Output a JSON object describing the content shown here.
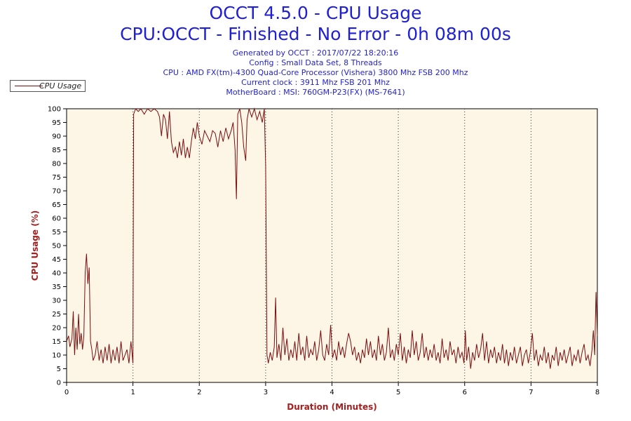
{
  "header": {
    "title": "OCCT 4.5.0 - CPU Usage",
    "subtitle": "CPU:OCCT - Finished - No Error - 0h 08m 00s",
    "info_lines": [
      "Generated by OCCT : 2017/07/22 18:20:16",
      "Config : Small Data Set, 8 Threads",
      "CPU : AMD FX(tm)-4300 Quad-Core Processor (Vishera) 3800 Mhz FSB 200 Mhz",
      "Current clock : 3911 Mhz FSB 201 Mhz",
      "MotherBoard : MSI: 760GM-P23(FX) (MS-7641)"
    ]
  },
  "colors": {
    "title": "#1f1fd6",
    "axis_label": "#a32020",
    "series": "#7a0d0d",
    "plot_bg": "#fdf5e6"
  },
  "chart_data": {
    "type": "line",
    "xlabel": "Duration (Minutes)",
    "ylabel": "CPU Usage (%)",
    "xlim": [
      0,
      8
    ],
    "ylim": [
      0,
      100
    ],
    "x_ticks": [
      0,
      1,
      2,
      3,
      4,
      5,
      6,
      7,
      8
    ],
    "y_ticks": [
      0,
      5,
      10,
      15,
      20,
      25,
      30,
      35,
      40,
      45,
      50,
      55,
      60,
      65,
      70,
      75,
      80,
      85,
      90,
      95,
      100
    ],
    "grid": "vertical dotted at each minute",
    "legend": "top-left",
    "series": [
      {
        "name": "CPU Usage",
        "points": [
          [
            0.0,
            15
          ],
          [
            0.03,
            17
          ],
          [
            0.05,
            13
          ],
          [
            0.08,
            16
          ],
          [
            0.1,
            26
          ],
          [
            0.12,
            10
          ],
          [
            0.14,
            20
          ],
          [
            0.16,
            12
          ],
          [
            0.18,
            25
          ],
          [
            0.2,
            14
          ],
          [
            0.22,
            18
          ],
          [
            0.24,
            12
          ],
          [
            0.26,
            17
          ],
          [
            0.28,
            40
          ],
          [
            0.3,
            47
          ],
          [
            0.32,
            36
          ],
          [
            0.34,
            42
          ],
          [
            0.36,
            15
          ],
          [
            0.38,
            12
          ],
          [
            0.4,
            8
          ],
          [
            0.43,
            10
          ],
          [
            0.46,
            15
          ],
          [
            0.49,
            8
          ],
          [
            0.52,
            12
          ],
          [
            0.55,
            7
          ],
          [
            0.58,
            13
          ],
          [
            0.61,
            8
          ],
          [
            0.64,
            14
          ],
          [
            0.67,
            7
          ],
          [
            0.7,
            12
          ],
          [
            0.73,
            8
          ],
          [
            0.76,
            13
          ],
          [
            0.79,
            7
          ],
          [
            0.82,
            15
          ],
          [
            0.85,
            8
          ],
          [
            0.88,
            10
          ],
          [
            0.91,
            12
          ],
          [
            0.94,
            7
          ],
          [
            0.97,
            15
          ],
          [
            1.0,
            7
          ],
          [
            1.01,
            98
          ],
          [
            1.04,
            100
          ],
          [
            1.08,
            99
          ],
          [
            1.12,
            100
          ],
          [
            1.17,
            98
          ],
          [
            1.22,
            100
          ],
          [
            1.27,
            99
          ],
          [
            1.32,
            100
          ],
          [
            1.37,
            99
          ],
          [
            1.4,
            97
          ],
          [
            1.43,
            90
          ],
          [
            1.46,
            98
          ],
          [
            1.49,
            96
          ],
          [
            1.52,
            89
          ],
          [
            1.55,
            99
          ],
          [
            1.58,
            88
          ],
          [
            1.61,
            84
          ],
          [
            1.64,
            86
          ],
          [
            1.67,
            82
          ],
          [
            1.7,
            88
          ],
          [
            1.73,
            83
          ],
          [
            1.76,
            89
          ],
          [
            1.79,
            82
          ],
          [
            1.82,
            86
          ],
          [
            1.85,
            82
          ],
          [
            1.88,
            88
          ],
          [
            1.91,
            93
          ],
          [
            1.94,
            89
          ],
          [
            1.97,
            95
          ],
          [
            2.0,
            90
          ],
          [
            2.04,
            87
          ],
          [
            2.08,
            92
          ],
          [
            2.12,
            90
          ],
          [
            2.16,
            88
          ],
          [
            2.2,
            92
          ],
          [
            2.24,
            91
          ],
          [
            2.28,
            86
          ],
          [
            2.32,
            92
          ],
          [
            2.36,
            88
          ],
          [
            2.4,
            93
          ],
          [
            2.44,
            89
          ],
          [
            2.48,
            92
          ],
          [
            2.51,
            95
          ],
          [
            2.54,
            85
          ],
          [
            2.56,
            67
          ],
          [
            2.58,
            98
          ],
          [
            2.61,
            100
          ],
          [
            2.64,
            95
          ],
          [
            2.67,
            86
          ],
          [
            2.7,
            81
          ],
          [
            2.72,
            96
          ],
          [
            2.75,
            100
          ],
          [
            2.79,
            97
          ],
          [
            2.83,
            100
          ],
          [
            2.87,
            96
          ],
          [
            2.91,
            99
          ],
          [
            2.95,
            95
          ],
          [
            2.98,
            100
          ],
          [
            3.0,
            79
          ],
          [
            3.02,
            10
          ],
          [
            3.04,
            7
          ],
          [
            3.07,
            11
          ],
          [
            3.1,
            8
          ],
          [
            3.13,
            13
          ],
          [
            3.15,
            31
          ],
          [
            3.17,
            9
          ],
          [
            3.2,
            14
          ],
          [
            3.23,
            8
          ],
          [
            3.26,
            20
          ],
          [
            3.29,
            10
          ],
          [
            3.32,
            16
          ],
          [
            3.35,
            8
          ],
          [
            3.38,
            12
          ],
          [
            3.41,
            9
          ],
          [
            3.44,
            15
          ],
          [
            3.47,
            8
          ],
          [
            3.5,
            18
          ],
          [
            3.53,
            10
          ],
          [
            3.56,
            13
          ],
          [
            3.59,
            8
          ],
          [
            3.62,
            17
          ],
          [
            3.65,
            9
          ],
          [
            3.68,
            12
          ],
          [
            3.71,
            10
          ],
          [
            3.74,
            15
          ],
          [
            3.77,
            8
          ],
          [
            3.8,
            12
          ],
          [
            3.83,
            19
          ],
          [
            3.86,
            10
          ],
          [
            3.89,
            8
          ],
          [
            3.92,
            14
          ],
          [
            3.95,
            10
          ],
          [
            3.98,
            21
          ],
          [
            4.01,
            9
          ],
          [
            4.04,
            12
          ],
          [
            4.07,
            8
          ],
          [
            4.1,
            15
          ],
          [
            4.13,
            10
          ],
          [
            4.16,
            13
          ],
          [
            4.19,
            9
          ],
          [
            4.22,
            14
          ],
          [
            4.25,
            18
          ],
          [
            4.28,
            15
          ],
          [
            4.31,
            10
          ],
          [
            4.34,
            13
          ],
          [
            4.37,
            8
          ],
          [
            4.4,
            11
          ],
          [
            4.43,
            7
          ],
          [
            4.46,
            12
          ],
          [
            4.49,
            9
          ],
          [
            4.52,
            16
          ],
          [
            4.55,
            10
          ],
          [
            4.58,
            15
          ],
          [
            4.61,
            9
          ],
          [
            4.64,
            12
          ],
          [
            4.67,
            8
          ],
          [
            4.7,
            17
          ],
          [
            4.73,
            10
          ],
          [
            4.76,
            14
          ],
          [
            4.79,
            8
          ],
          [
            4.82,
            11
          ],
          [
            4.85,
            20
          ],
          [
            4.88,
            9
          ],
          [
            4.91,
            12
          ],
          [
            4.94,
            8
          ],
          [
            4.97,
            14
          ],
          [
            5.0,
            10
          ],
          [
            5.03,
            18
          ],
          [
            5.06,
            8
          ],
          [
            5.09,
            13
          ],
          [
            5.12,
            7
          ],
          [
            5.15,
            12
          ],
          [
            5.18,
            9
          ],
          [
            5.21,
            19
          ],
          [
            5.24,
            10
          ],
          [
            5.27,
            15
          ],
          [
            5.3,
            8
          ],
          [
            5.33,
            11
          ],
          [
            5.36,
            18
          ],
          [
            5.39,
            9
          ],
          [
            5.42,
            13
          ],
          [
            5.45,
            8
          ],
          [
            5.48,
            12
          ],
          [
            5.51,
            9
          ],
          [
            5.54,
            14
          ],
          [
            5.57,
            8
          ],
          [
            5.6,
            11
          ],
          [
            5.63,
            7
          ],
          [
            5.66,
            16
          ],
          [
            5.69,
            9
          ],
          [
            5.72,
            12
          ],
          [
            5.75,
            8
          ],
          [
            5.78,
            15
          ],
          [
            5.81,
            10
          ],
          [
            5.84,
            12
          ],
          [
            5.87,
            7
          ],
          [
            5.9,
            13
          ],
          [
            5.93,
            9
          ],
          [
            5.96,
            11
          ],
          [
            5.99,
            7
          ],
          [
            6.01,
            19
          ],
          [
            6.03,
            8
          ],
          [
            6.06,
            13
          ],
          [
            6.09,
            5
          ],
          [
            6.12,
            11
          ],
          [
            6.15,
            8
          ],
          [
            6.18,
            14
          ],
          [
            6.21,
            9
          ],
          [
            6.24,
            12
          ],
          [
            6.27,
            18
          ],
          [
            6.3,
            8
          ],
          [
            6.33,
            15
          ],
          [
            6.36,
            7
          ],
          [
            6.39,
            12
          ],
          [
            6.42,
            9
          ],
          [
            6.45,
            13
          ],
          [
            6.48,
            7
          ],
          [
            6.51,
            11
          ],
          [
            6.54,
            8
          ],
          [
            6.57,
            14
          ],
          [
            6.6,
            7
          ],
          [
            6.63,
            12
          ],
          [
            6.66,
            6
          ],
          [
            6.69,
            11
          ],
          [
            6.72,
            8
          ],
          [
            6.75,
            13
          ],
          [
            6.78,
            7
          ],
          [
            6.81,
            10
          ],
          [
            6.84,
            13
          ],
          [
            6.87,
            6
          ],
          [
            6.9,
            10
          ],
          [
            6.93,
            12
          ],
          [
            6.96,
            7
          ],
          [
            6.99,
            11
          ],
          [
            7.02,
            18
          ],
          [
            7.05,
            8
          ],
          [
            7.08,
            12
          ],
          [
            7.11,
            6
          ],
          [
            7.14,
            10
          ],
          [
            7.17,
            8
          ],
          [
            7.2,
            13
          ],
          [
            7.23,
            7
          ],
          [
            7.26,
            11
          ],
          [
            7.29,
            5
          ],
          [
            7.32,
            10
          ],
          [
            7.35,
            8
          ],
          [
            7.38,
            13
          ],
          [
            7.41,
            6
          ],
          [
            7.44,
            11
          ],
          [
            7.47,
            8
          ],
          [
            7.5,
            12
          ],
          [
            7.53,
            7
          ],
          [
            7.56,
            10
          ],
          [
            7.59,
            13
          ],
          [
            7.62,
            6
          ],
          [
            7.65,
            10
          ],
          [
            7.68,
            8
          ],
          [
            7.71,
            12
          ],
          [
            7.74,
            7
          ],
          [
            7.77,
            11
          ],
          [
            7.8,
            14
          ],
          [
            7.83,
            8
          ],
          [
            7.86,
            10
          ],
          [
            7.89,
            6
          ],
          [
            7.92,
            12
          ],
          [
            7.94,
            19
          ],
          [
            7.96,
            10
          ],
          [
            7.98,
            33
          ],
          [
            8.0,
            17
          ]
        ]
      }
    ]
  }
}
